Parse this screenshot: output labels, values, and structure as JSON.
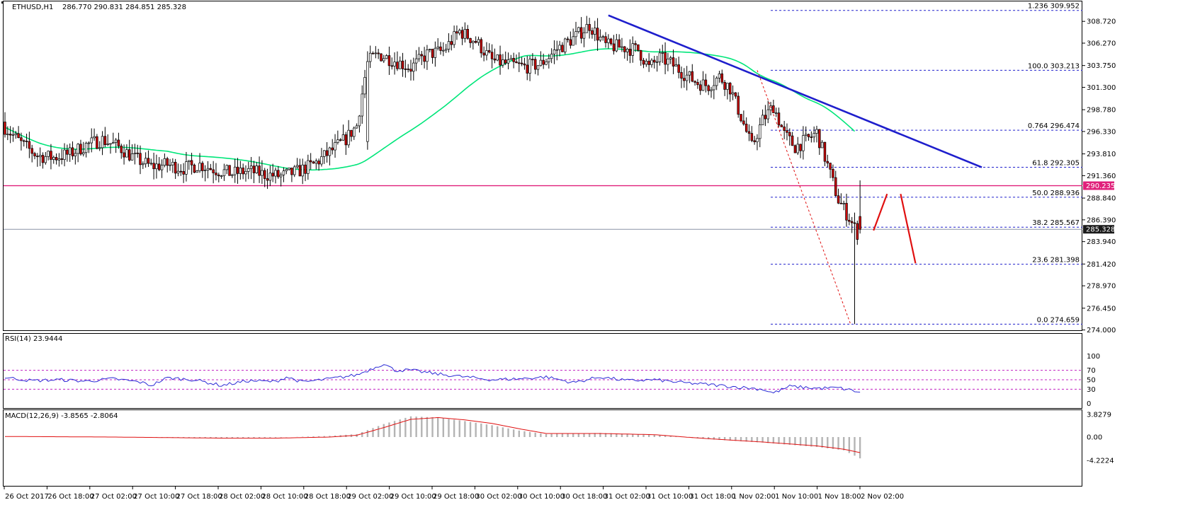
{
  "header": {
    "symbol": "ETHUSD,H1",
    "ohlc": "286.770 290.831 284.851 285.328"
  },
  "colors": {
    "bull_candle": "#ffffff",
    "bear_candle": "#cc0000",
    "candle_wick": "#000000",
    "moving_average": "#00e67a",
    "trendline": "#1e1ecc",
    "support_line": "#e0207a",
    "fib_lines": "#1e1ecc",
    "forecast_arrows": "#e01010",
    "rsi_line": "#2b2bd6",
    "rsi_levels": "#c020c0",
    "macd_signal": "#e01010",
    "macd_histogram": "#b4b4b4"
  },
  "price_axis": {
    "ticks": [
      "308.720",
      "306.270",
      "303.750",
      "301.300",
      "298.780",
      "296.330",
      "293.810",
      "291.360",
      "288.840",
      "286.390",
      "283.940",
      "281.420",
      "278.970",
      "276.450",
      "274.000"
    ],
    "support_tag": "290.235",
    "current_tag": "285.328"
  },
  "time_axis": {
    "ticks": [
      "26 Oct 2017",
      "26 Oct 18:00",
      "27 Oct 02:00",
      "27 Oct 10:00",
      "27 Oct 18:00",
      "28 Oct 02:00",
      "28 Oct 10:00",
      "28 Oct 18:00",
      "29 Oct 02:00",
      "29 Oct 10:00",
      "29 Oct 18:00",
      "30 Oct 02:00",
      "30 Oct 10:00",
      "30 Oct 18:00",
      "31 Oct 02:00",
      "31 Oct 10:00",
      "31 Oct 18:00",
      "1 Nov 02:00",
      "1 Nov 10:00",
      "1 Nov 18:00",
      "2 Nov 02:00"
    ]
  },
  "fibonacci": [
    {
      "label": "1.236  309.952",
      "price": 309.952
    },
    {
      "label": "100.0  303.213",
      "price": 303.213
    },
    {
      "label": "0.764  296.474",
      "price": 296.474
    },
    {
      "label": "61.8  292.305",
      "price": 292.305
    },
    {
      "label": "50.0  288.936",
      "price": 288.936
    },
    {
      "label": "38.2  285.567",
      "price": 285.567
    },
    {
      "label": "23.6  281.398",
      "price": 281.398
    },
    {
      "label": "0.0  274.659",
      "price": 274.659
    }
  ],
  "rsi": {
    "label": "RSI(14) 23.9444",
    "levels": [
      30,
      50,
      70
    ],
    "axis_ticks": [
      "100",
      "70",
      "50",
      "30",
      "0"
    ]
  },
  "macd": {
    "label": "MACD(12,26,9) -3.8565 -2.8064",
    "axis_ticks": [
      "3.8279",
      "0.00",
      "-4.2224"
    ]
  },
  "chart_data": {
    "type": "candlestick",
    "instrument": "ETHUSD",
    "timeframe": "H1",
    "ylim": [
      274.0,
      310.6
    ],
    "support_level": 290.235,
    "last_price": 285.328,
    "close_path": [
      [
        0,
        296.8
      ],
      [
        6,
        295.0
      ],
      [
        12,
        293.6
      ],
      [
        18,
        293.4
      ],
      [
        24,
        293.8
      ],
      [
        30,
        294.8
      ],
      [
        36,
        295.4
      ],
      [
        42,
        294.6
      ],
      [
        48,
        293.3
      ],
      [
        54,
        292.4
      ],
      [
        60,
        292.6
      ],
      [
        66,
        292.2
      ],
      [
        72,
        292.6
      ],
      [
        78,
        292.0
      ],
      [
        84,
        291.6
      ],
      [
        90,
        291.9
      ],
      [
        96,
        291.5
      ],
      [
        102,
        291.3
      ],
      [
        108,
        291.8
      ],
      [
        114,
        292.6
      ],
      [
        120,
        294.0
      ],
      [
        126,
        295.5
      ],
      [
        130,
        297.0
      ],
      [
        134,
        304.2
      ],
      [
        138,
        305.0
      ],
      [
        144,
        304.3
      ],
      [
        150,
        303.5
      ],
      [
        156,
        305.0
      ],
      [
        162,
        305.4
      ],
      [
        168,
        307.6
      ],
      [
        174,
        306.5
      ],
      [
        180,
        304.3
      ],
      [
        186,
        303.9
      ],
      [
        192,
        303.6
      ],
      [
        198,
        303.9
      ],
      [
        204,
        305.6
      ],
      [
        210,
        306.8
      ],
      [
        216,
        308.3
      ],
      [
        222,
        306.0
      ],
      [
        228,
        305.8
      ],
      [
        234,
        305.5
      ],
      [
        238,
        303.5
      ],
      [
        242,
        304.6
      ],
      [
        246,
        304.0
      ],
      [
        252,
        302.6
      ],
      [
        256,
        301.8
      ],
      [
        260,
        301.5
      ],
      [
        264,
        302.5
      ],
      [
        268,
        301.2
      ],
      [
        272,
        298.0
      ],
      [
        276,
        294.6
      ],
      [
        280,
        297.6
      ],
      [
        284,
        299.2
      ],
      [
        288,
        296.0
      ],
      [
        292,
        294.6
      ],
      [
        296,
        295.3
      ],
      [
        300,
        296.2
      ],
      [
        304,
        292.5
      ],
      [
        308,
        288.6
      ],
      [
        312,
        286.6
      ],
      [
        315,
        284.9
      ],
      [
        316,
        285.33
      ]
    ],
    "trendline": [
      [
        300.0,
        309.4
      ],
      [
        340.0,
        292.3
      ]
    ],
    "rsi_last": 23.9444,
    "rsi_range": [
      0,
      100
    ],
    "macd_main": -3.8565,
    "macd_signal": -2.8064,
    "macd_range": [
      -4.2224,
      3.8279
    ],
    "macd_path": [
      [
        0,
        0.0
      ],
      [
        20,
        0.0
      ],
      [
        40,
        0.0
      ],
      [
        60,
        -0.1
      ],
      [
        80,
        -0.2
      ],
      [
        100,
        -0.1
      ],
      [
        120,
        0.2
      ],
      [
        130,
        0.5
      ],
      [
        140,
        2.2
      ],
      [
        150,
        3.5
      ],
      [
        160,
        3.3
      ],
      [
        170,
        2.7
      ],
      [
        180,
        2.0
      ],
      [
        190,
        1.1
      ],
      [
        200,
        0.5
      ],
      [
        220,
        0.7
      ],
      [
        240,
        0.4
      ],
      [
        260,
        -0.4
      ],
      [
        280,
        -1.0
      ],
      [
        300,
        -1.8
      ],
      [
        310,
        -2.4
      ],
      [
        316,
        -3.86
      ]
    ],
    "signal_path": [
      [
        0,
        0.1
      ],
      [
        40,
        0.0
      ],
      [
        60,
        -0.1
      ],
      [
        80,
        -0.2
      ],
      [
        100,
        -0.2
      ],
      [
        120,
        0.0
      ],
      [
        130,
        0.3
      ],
      [
        140,
        1.6
      ],
      [
        150,
        3.0
      ],
      [
        160,
        3.3
      ],
      [
        170,
        2.9
      ],
      [
        180,
        2.3
      ],
      [
        190,
        1.4
      ],
      [
        200,
        0.6
      ],
      [
        220,
        0.6
      ],
      [
        240,
        0.4
      ],
      [
        260,
        -0.3
      ],
      [
        280,
        -0.9
      ],
      [
        300,
        -1.6
      ],
      [
        310,
        -2.2
      ],
      [
        316,
        -2.81
      ]
    ],
    "rsi_path": [
      [
        0,
        55
      ],
      [
        10,
        48
      ],
      [
        20,
        50
      ],
      [
        30,
        47
      ],
      [
        40,
        52
      ],
      [
        50,
        45
      ],
      [
        54,
        38
      ],
      [
        60,
        54
      ],
      [
        70,
        50
      ],
      [
        80,
        38
      ],
      [
        90,
        48
      ],
      [
        100,
        46
      ],
      [
        104,
        56
      ],
      [
        110,
        45
      ],
      [
        120,
        52
      ],
      [
        130,
        60
      ],
      [
        140,
        84
      ],
      [
        144,
        70
      ],
      [
        150,
        70
      ],
      [
        160,
        62
      ],
      [
        170,
        56
      ],
      [
        180,
        50
      ],
      [
        190,
        52
      ],
      [
        200,
        56
      ],
      [
        210,
        44
      ],
      [
        220,
        56
      ],
      [
        230,
        48
      ],
      [
        240,
        50
      ],
      [
        250,
        44
      ],
      [
        260,
        40
      ],
      [
        270,
        35
      ],
      [
        280,
        30
      ],
      [
        284,
        22
      ],
      [
        290,
        36
      ],
      [
        300,
        32
      ],
      [
        308,
        33
      ],
      [
        316,
        24
      ]
    ]
  }
}
